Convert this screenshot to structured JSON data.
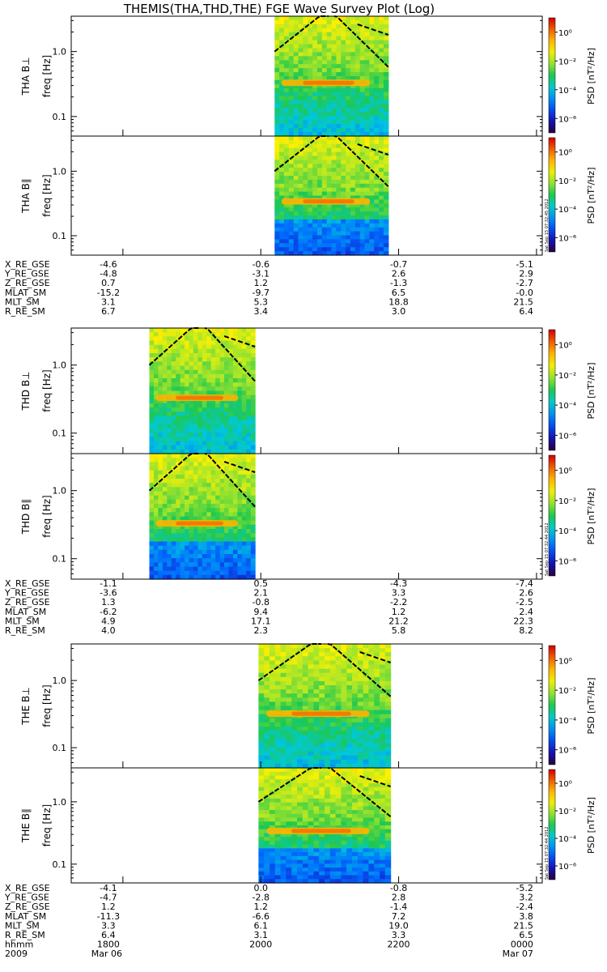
{
  "title": "THEMIS(THA,THD,THE) FGE Wave Survey Plot (Log)",
  "freq_label": "freq [Hz]",
  "colorbar": {
    "label": "PSD [nT²/Hz]",
    "tick_labels": [
      "10⁰",
      "10⁻²",
      "10⁻⁴",
      "10⁻⁶"
    ],
    "tick_values": [
      1,
      0.01,
      0.0001,
      1e-06
    ],
    "stamps": [
      "Sat Sep 15 07:32:45 2012",
      "Sat Sep 15 07:32:44 2012",
      "Sat Sep 15 07:32:44 2012"
    ]
  },
  "chart_data": {
    "type": "heatmap",
    "y_scale": "log",
    "ylim": [
      0.05,
      3.5
    ],
    "y_ticks": [
      "1.0",
      "0.1"
    ],
    "y_tick_values": [
      1.0,
      0.1
    ],
    "panels": [
      {
        "ylabel": "THA B⊥",
        "data_start": "20:12",
        "data_end": "21:51",
        "band_freq": 0.33
      },
      {
        "ylabel": "THA B∥",
        "data_start": "20:12",
        "data_end": "21:51",
        "band_freq": 0.34
      },
      {
        "ylabel": "THD B⊥",
        "data_start": "18:23",
        "data_end": "19:55",
        "band_freq": 0.33
      },
      {
        "ylabel": "THD B∥",
        "data_start": "18:23",
        "data_end": "19:55",
        "band_freq": 0.33
      },
      {
        "ylabel": "THE B⊥",
        "data_start": "19:58",
        "data_end": "21:53",
        "band_freq": 0.32
      },
      {
        "ylabel": "THE B∥",
        "data_start": "19:58",
        "data_end": "21:53",
        "band_freq": 0.34
      }
    ],
    "ephemeris": [
      {
        "rows": [
          {
            "label": "X_RE_GSE",
            "values": [
              "-4.6",
              "-0.6",
              "-0.7",
              "-5.1"
            ]
          },
          {
            "label": "Y_RE_GSE",
            "values": [
              "-4.8",
              "-3.1",
              "2.6",
              "2.9"
            ]
          },
          {
            "label": "Z_RE_GSE",
            "values": [
              "0.7",
              "1.2",
              "-1.3",
              "-2.7"
            ]
          },
          {
            "label": "MLAT_SM",
            "values": [
              "-15.2",
              "-9.7",
              "6.5",
              "-0.0"
            ]
          },
          {
            "label": "MLT_SM",
            "values": [
              "3.1",
              "5.3",
              "18.8",
              "21.5"
            ]
          },
          {
            "label": "R_RE_SM",
            "values": [
              "6.7",
              "3.4",
              "3.0",
              "6.4"
            ]
          }
        ]
      },
      {
        "rows": [
          {
            "label": "X_RE_GSE",
            "values": [
              "-1.1",
              "0.5",
              "-4.3",
              "-7.4"
            ]
          },
          {
            "label": "Y_RE_GSE",
            "values": [
              "-3.6",
              "2.1",
              "3.3",
              "2.6"
            ]
          },
          {
            "label": "Z_RE_GSE",
            "values": [
              "1.3",
              "-0.8",
              "-2.2",
              "-2.5"
            ]
          },
          {
            "label": "MLAT_SM",
            "values": [
              "-6.2",
              "9.4",
              "1.2",
              "2.4"
            ]
          },
          {
            "label": "MLT_SM",
            "values": [
              "4.9",
              "17.1",
              "21.2",
              "22.3"
            ]
          },
          {
            "label": "R_RE_SM",
            "values": [
              "4.0",
              "2.3",
              "5.8",
              "8.2"
            ]
          }
        ]
      },
      {
        "rows": [
          {
            "label": "X_RE_GSE",
            "values": [
              "-4.1",
              "0.0",
              "-0.8",
              "-5.2"
            ]
          },
          {
            "label": "Y_RE_GSE",
            "values": [
              "-4.7",
              "-2.8",
              "2.8",
              "3.2"
            ]
          },
          {
            "label": "Z_RE_GSE",
            "values": [
              "1.2",
              "1.2",
              "-1.4",
              "-2.4"
            ]
          },
          {
            "label": "MLAT_SM",
            "values": [
              "-11.3",
              "-6.6",
              "7.2",
              "3.8"
            ]
          },
          {
            "label": "MLT_SM",
            "values": [
              "3.3",
              "6.1",
              "19.0",
              "21.5"
            ]
          },
          {
            "label": "R_RE_SM",
            "values": [
              "6.4",
              "3.1",
              "3.3",
              "6.5"
            ]
          },
          {
            "label": "hhmm",
            "values": [
              "1800",
              "2000",
              "2200",
              "0000"
            ]
          }
        ]
      }
    ],
    "date_row": {
      "label": "2009",
      "values": [
        "Mar 06",
        "",
        "",
        "Mar 07"
      ]
    }
  }
}
